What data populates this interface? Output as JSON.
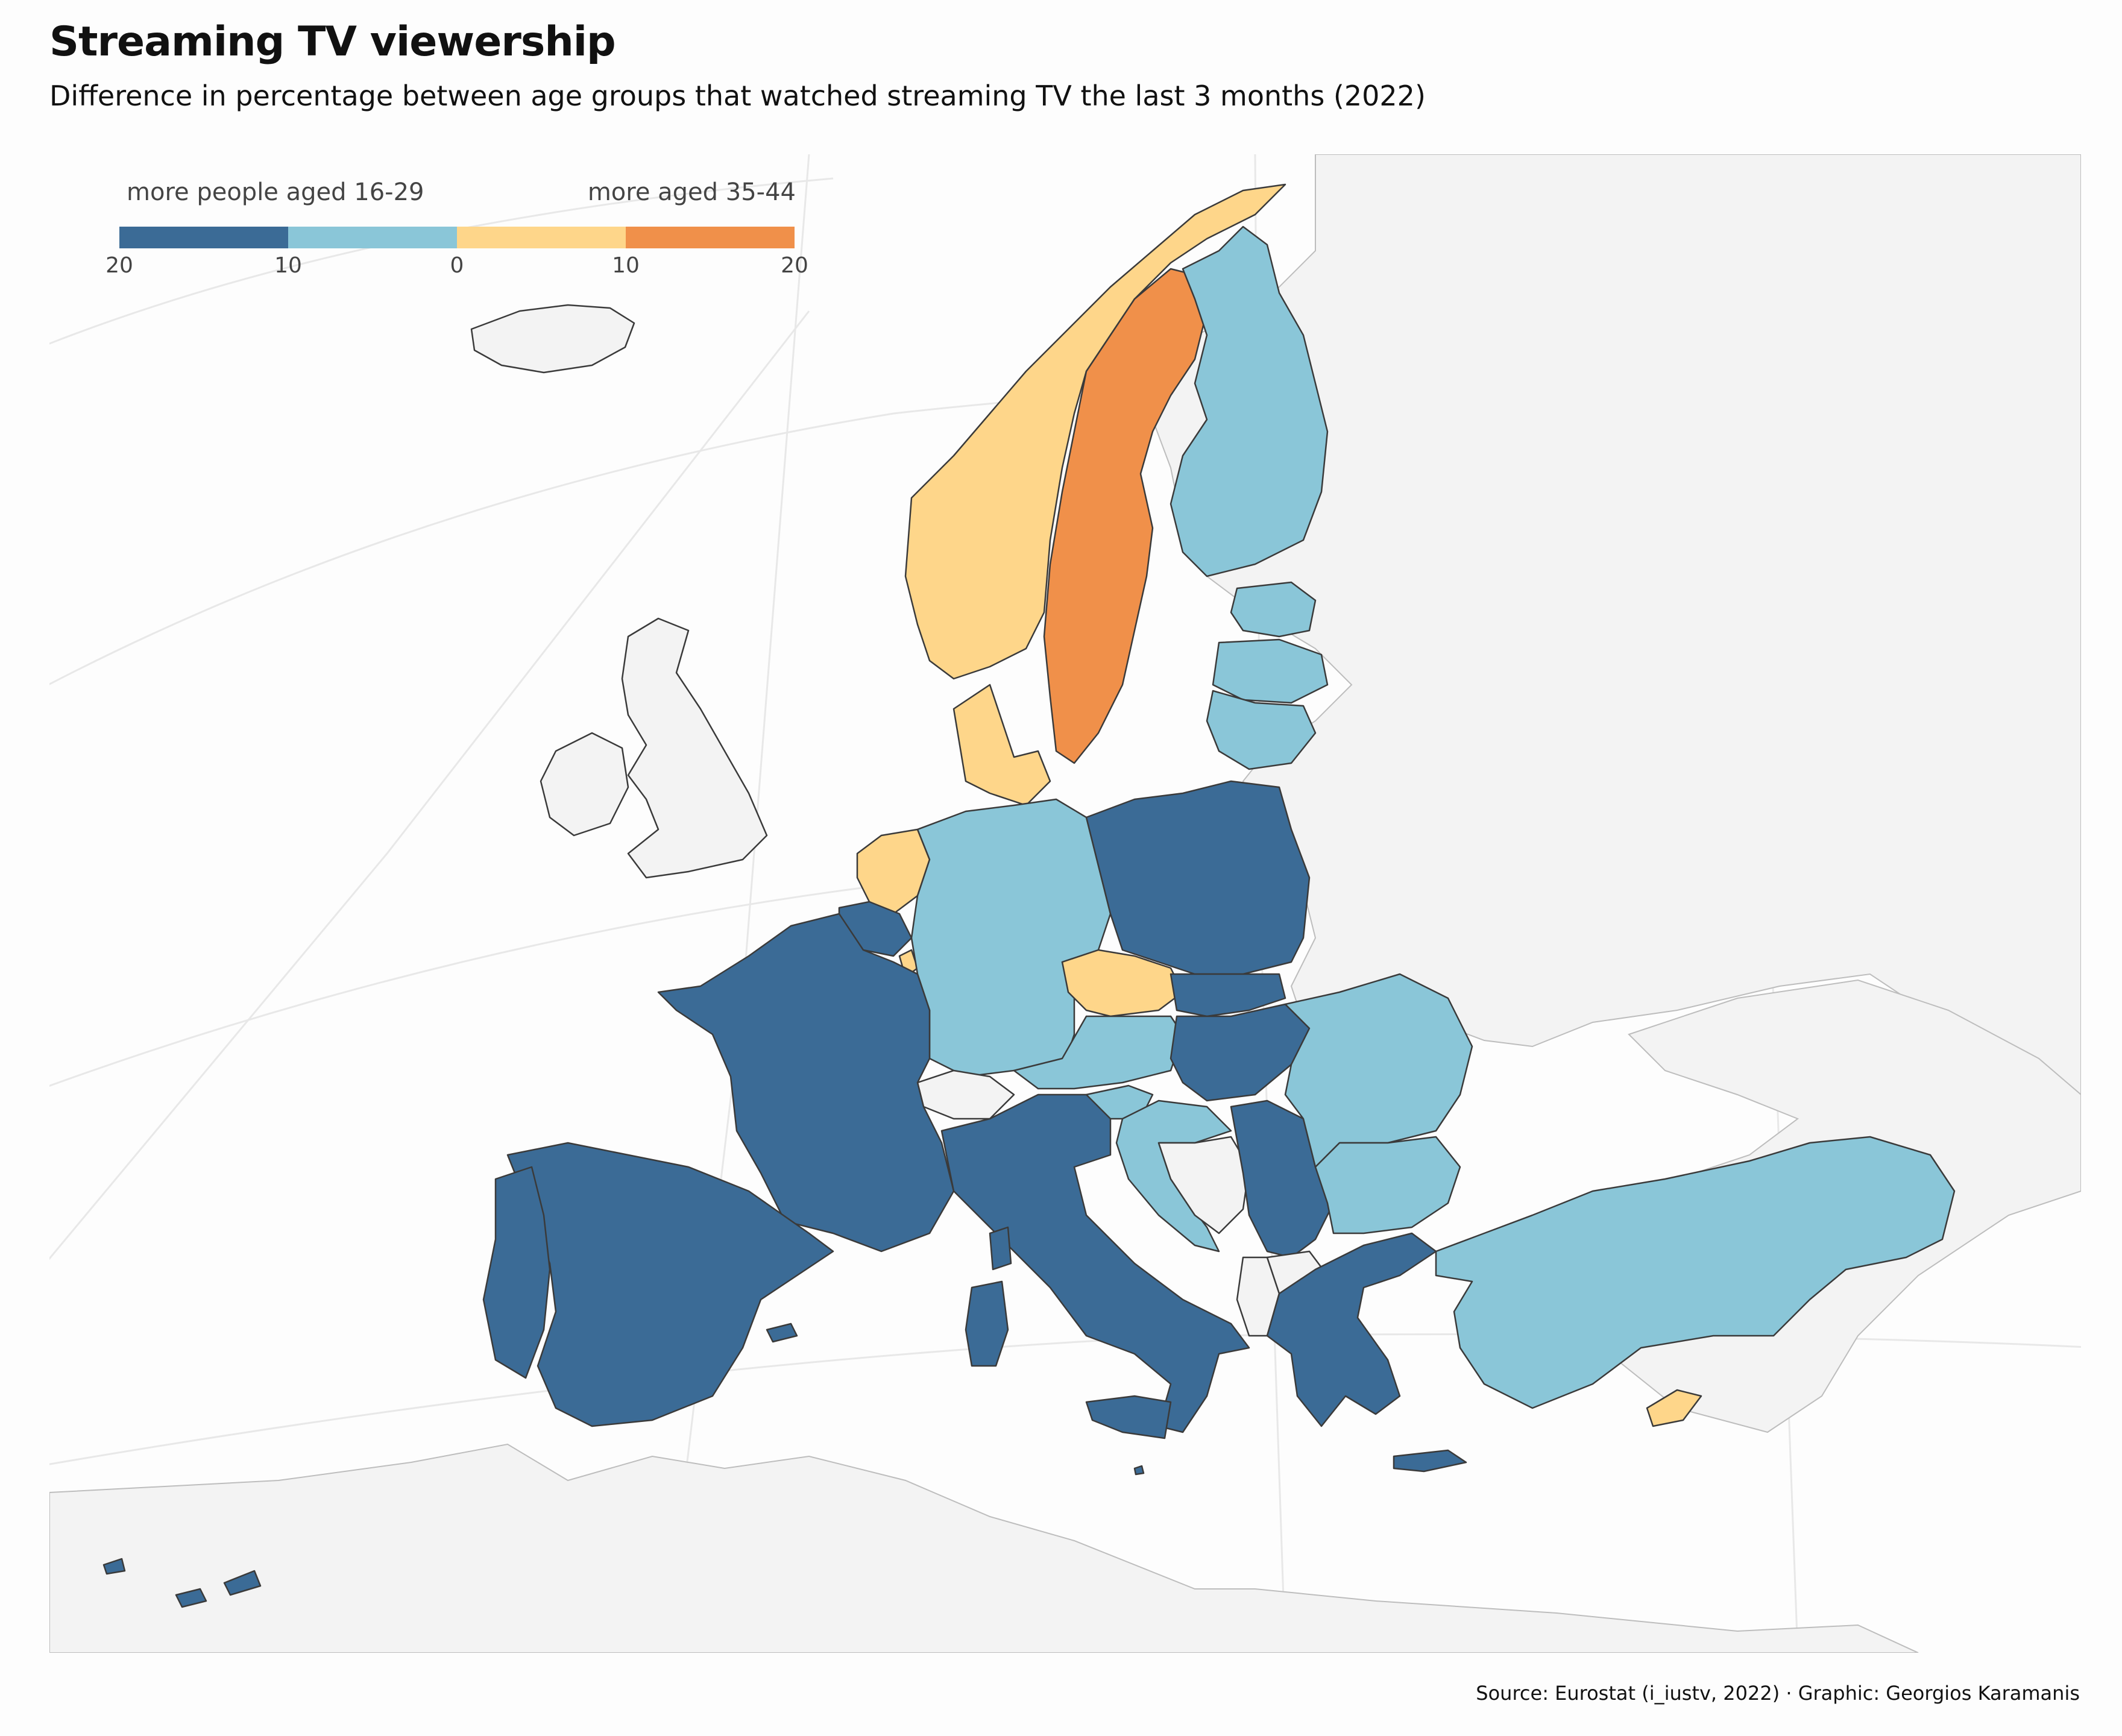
{
  "title": "Streaming TV viewership",
  "subtitle": "Difference in percentage between age groups that watched streaming TV the last 3 months (2022)",
  "legend": {
    "left_label": "more people aged 16-29",
    "right_label": "more aged 35-44",
    "ticks": [
      "20",
      "10",
      "0",
      "10",
      "20"
    ],
    "bins": [
      {
        "range": "16-29 +10 to +20",
        "color": "#3b6b96"
      },
      {
        "range": "16-29 0 to +10",
        "color": "#8ac6d8"
      },
      {
        "range": "35-44 0 to +10",
        "color": "#fed68a"
      },
      {
        "range": "35-44 +10 to +20",
        "color": "#f0904a"
      }
    ]
  },
  "colors": {
    "dark_blue": "#3b6b96",
    "light_blue": "#8ac6d8",
    "light_orange": "#fed68a",
    "orange": "#f0904a",
    "no_data": "#f3f3f3"
  },
  "countries": [
    {
      "name": "Norway",
      "bin": "light_orange"
    },
    {
      "name": "Sweden",
      "bin": "orange"
    },
    {
      "name": "Finland",
      "bin": "light_blue"
    },
    {
      "name": "Estonia",
      "bin": "light_blue"
    },
    {
      "name": "Latvia",
      "bin": "light_blue"
    },
    {
      "name": "Lithuania",
      "bin": "light_blue"
    },
    {
      "name": "Denmark",
      "bin": "light_orange"
    },
    {
      "name": "Netherlands",
      "bin": "light_orange"
    },
    {
      "name": "Belgium",
      "bin": "dark_blue"
    },
    {
      "name": "Luxembourg",
      "bin": "light_orange"
    },
    {
      "name": "Germany",
      "bin": "light_blue"
    },
    {
      "name": "Poland",
      "bin": "dark_blue"
    },
    {
      "name": "Czechia",
      "bin": "light_orange"
    },
    {
      "name": "Slovakia",
      "bin": "dark_blue"
    },
    {
      "name": "Austria",
      "bin": "light_blue"
    },
    {
      "name": "Hungary",
      "bin": "dark_blue"
    },
    {
      "name": "Slovenia",
      "bin": "light_blue"
    },
    {
      "name": "Croatia",
      "bin": "light_blue"
    },
    {
      "name": "Serbia",
      "bin": "dark_blue"
    },
    {
      "name": "Romania",
      "bin": "light_blue"
    },
    {
      "name": "Bulgaria",
      "bin": "light_blue"
    },
    {
      "name": "Greece",
      "bin": "dark_blue"
    },
    {
      "name": "Turkey",
      "bin": "light_blue"
    },
    {
      "name": "Cyprus",
      "bin": "light_orange"
    },
    {
      "name": "France",
      "bin": "dark_blue"
    },
    {
      "name": "Spain",
      "bin": "dark_blue"
    },
    {
      "name": "Portugal",
      "bin": "dark_blue"
    },
    {
      "name": "Italy",
      "bin": "dark_blue"
    },
    {
      "name": "Malta",
      "bin": "dark_blue"
    },
    {
      "name": "United Kingdom",
      "bin": "no_data"
    },
    {
      "name": "Ireland",
      "bin": "no_data"
    },
    {
      "name": "Iceland",
      "bin": "no_data"
    },
    {
      "name": "Switzerland",
      "bin": "no_data"
    },
    {
      "name": "Bosnia and Herzegovina",
      "bin": "no_data"
    },
    {
      "name": "Albania",
      "bin": "no_data"
    },
    {
      "name": "North Macedonia",
      "bin": "no_data"
    }
  ],
  "caption": "Source: Eurostat (i_iustv, 2022) · Graphic: Georgios Karamanis"
}
